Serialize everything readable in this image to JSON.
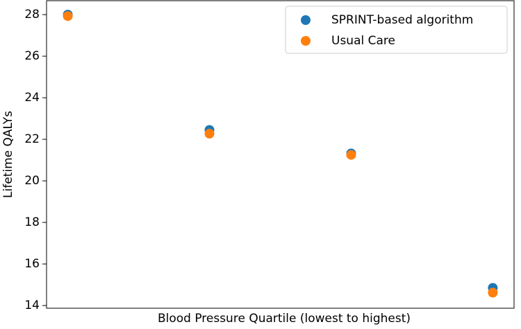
{
  "chart_data": {
    "type": "scatter",
    "xlabel": "Blood Pressure Quartile (lowest to highest)",
    "ylabel": "Lifetime QALYs",
    "categories": [
      null,
      null,
      null,
      null
    ],
    "series": [
      {
        "name": "SPRINT-based algorithm",
        "color": "#1f77b4",
        "values": [
          28.0,
          22.45,
          21.32,
          14.85
        ]
      },
      {
        "name": "Usual Care",
        "color": "#ff7f0e",
        "values": [
          27.93,
          22.27,
          21.25,
          14.62
        ]
      }
    ],
    "ylim": [
      13.87,
      28.67
    ],
    "yticks": [
      14,
      16,
      18,
      20,
      22,
      24,
      26,
      28
    ],
    "legend": "upper right"
  }
}
